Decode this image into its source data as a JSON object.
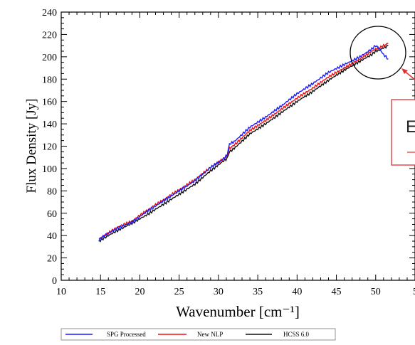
{
  "chart_data": {
    "type": "line",
    "xlabel": "Wavenumber [cm⁻¹]",
    "ylabel": "Flux Density [Jy]",
    "xlim": [
      10,
      55
    ],
    "ylim": [
      0,
      240
    ],
    "x_ticks": [
      10,
      15,
      20,
      25,
      30,
      35,
      40,
      45,
      50
    ],
    "x_tick_labels": [
      "10",
      "15",
      "20",
      "25",
      "30",
      "35",
      "40",
      "45",
      "50"
    ],
    "x_edge_tick_label": "5",
    "y_ticks": [
      0,
      20,
      40,
      60,
      80,
      100,
      120,
      140,
      160,
      180,
      200,
      220,
      240
    ],
    "y_tick_labels": [
      "0",
      "20",
      "40",
      "60",
      "80",
      "100",
      "120",
      "140",
      "160",
      "180",
      "200",
      "220",
      "240"
    ],
    "grid": false,
    "legend_position": "bottom",
    "series": [
      {
        "name": "SPG Processed",
        "color": "#1a1aff",
        "x": [
          14.8,
          15.5,
          17.0,
          19.0,
          21.0,
          23.0,
          25.0,
          27.0,
          29.0,
          30.5,
          31.1,
          31.4,
          32.0,
          34.0,
          36.0,
          38.0,
          40.0,
          42.0,
          44.0,
          46.0,
          48.0,
          49.5,
          50.0,
          50.5,
          51.0,
          51.6
        ],
        "y": [
          36,
          40,
          46,
          52,
          62,
          71,
          80,
          89,
          101,
          108,
          112,
          122,
          124,
          137,
          146,
          156,
          167,
          176,
          186,
          193,
          200,
          207,
          210,
          207,
          202,
          198
        ]
      },
      {
        "name": "New NLP",
        "color": "#ee1111",
        "x": [
          14.8,
          15.5,
          17.0,
          19.0,
          21.0,
          23.0,
          25.0,
          27.0,
          29.0,
          30.5,
          31.1,
          31.4,
          32.0,
          34.0,
          36.0,
          38.0,
          40.0,
          42.0,
          44.0,
          46.0,
          48.0,
          49.5,
          50.0,
          50.5,
          51.0,
          51.6
        ],
        "y": [
          37,
          40,
          47,
          53,
          63,
          72,
          81,
          90,
          101,
          108,
          111,
          118,
          121,
          134,
          143,
          153,
          163,
          172,
          182,
          190,
          198,
          205,
          207,
          208,
          210,
          212
        ]
      },
      {
        "name": "HCSS 6.0",
        "color": "#111111",
        "x": [
          14.8,
          15.5,
          17.0,
          19.0,
          21.0,
          23.0,
          25.0,
          27.0,
          29.0,
          30.5,
          31.1,
          31.4,
          32.0,
          34.0,
          36.0,
          38.0,
          40.0,
          42.0,
          44.0,
          46.0,
          48.0,
          49.5,
          50.0,
          50.5,
          51.0,
          51.6
        ],
        "y": [
          35,
          38,
          44,
          51,
          59,
          68,
          77,
          86,
          98,
          106,
          109,
          115,
          118,
          131,
          140,
          150,
          160,
          169,
          179,
          188,
          196,
          202,
          205,
          206,
          208,
          210
        ]
      }
    ],
    "annotations": [
      {
        "type": "circle",
        "label": "region around wavenumber 50",
        "x": 51,
        "y": 204
      },
      {
        "type": "callout-box",
        "text": "E",
        "target": "circle"
      }
    ]
  },
  "legend": {
    "items": [
      {
        "label": "SPG Processed",
        "color": "#1a1aff"
      },
      {
        "label": "New NLP",
        "color": "#ee1111"
      },
      {
        "label": "HCSS 6.0",
        "color": "#111111"
      }
    ]
  },
  "callout": {
    "text": "E",
    "box_color": "#e03030",
    "arrow_color": "#e03030"
  }
}
